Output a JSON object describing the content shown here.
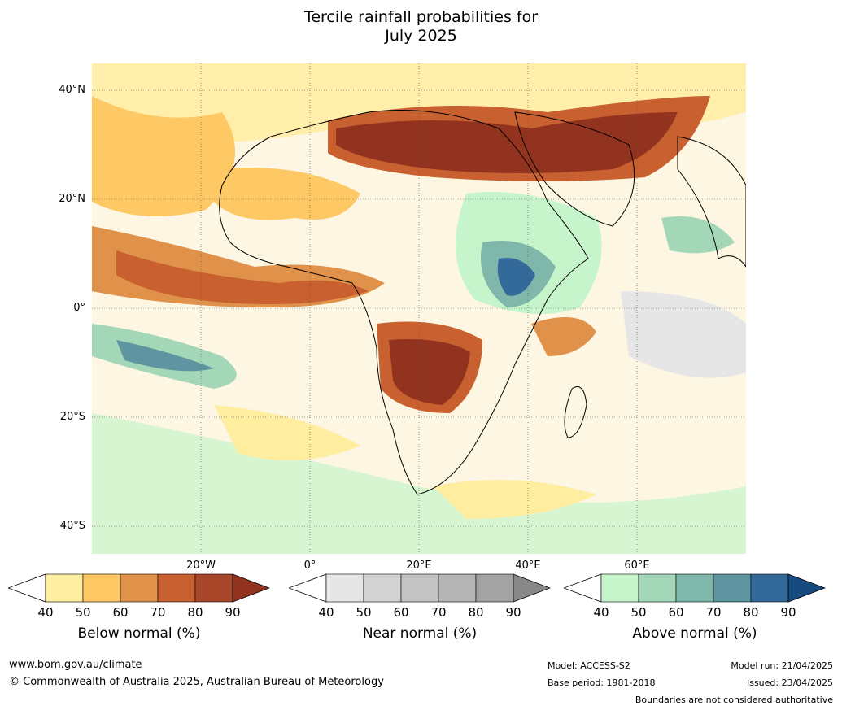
{
  "title_line1": "Tercile rainfall probabilities for",
  "title_line2": "July 2025",
  "lat_labels": [
    "40°N",
    "20°N",
    "0°",
    "20°S",
    "40°S"
  ],
  "lon_labels": [
    "20°W",
    "0°",
    "20°E",
    "40°E",
    "60°E"
  ],
  "colorbars": [
    {
      "name": "Below normal (%)",
      "ticks": [
        "40",
        "50",
        "60",
        "70",
        "80",
        "90"
      ],
      "colors": [
        "#ffeda0",
        "#fec865",
        "#e0914a",
        "#c8602f",
        "#a9472a",
        "#92331f"
      ]
    },
    {
      "name": "Near normal (%)",
      "ticks": [
        "40",
        "50",
        "60",
        "70",
        "80",
        "90"
      ],
      "colors": [
        "#e6e6e6",
        "#d3d3d3",
        "#c3c3c3",
        "#b4b4b4",
        "#a3a3a3",
        "#888888"
      ]
    },
    {
      "name": "Above normal (%)",
      "ticks": [
        "40",
        "50",
        "60",
        "70",
        "80",
        "90"
      ],
      "colors": [
        "#c7f5cb",
        "#a4d7b8",
        "#7fb7aa",
        "#5f95a0",
        "#336a9a",
        "#174b7f"
      ]
    }
  ],
  "footer": {
    "website": "www.bom.gov.au/climate",
    "copyright": "© Commonwealth of Australia 2025, Australian Bureau of Meteorology",
    "model": "Model: ACCESS-S2",
    "base_period": "Base period: 1981-2018",
    "model_run": "Model run: 21/04/2025",
    "issued": "Issued: 23/04/2025",
    "disclaimer": "Boundaries are not considered authoritative"
  }
}
